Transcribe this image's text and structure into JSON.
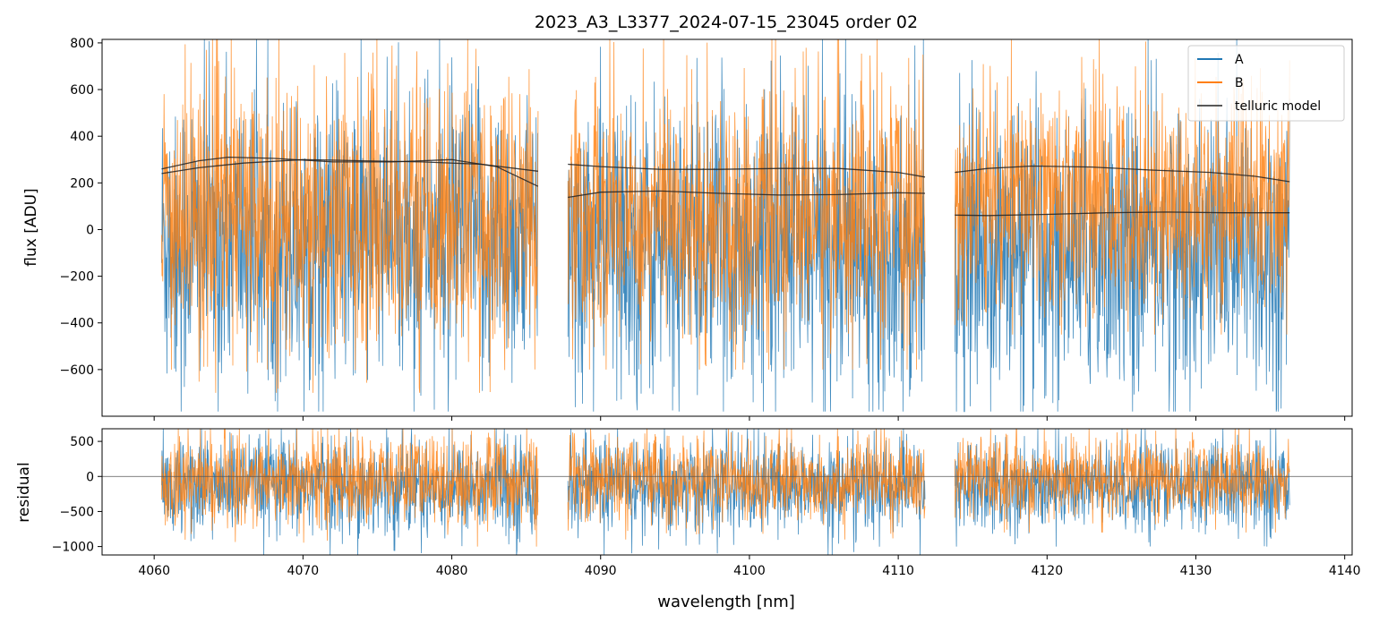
{
  "title": "2023_A3_L3377_2024-07-15_23045  order 02",
  "colors": {
    "A": "#1f77b4",
    "B": "#ff7f0e",
    "telluric": "#222222"
  },
  "chart_data": [
    {
      "type": "line",
      "panel": "top",
      "title": "2023_A3_L3377_2024-07-15_23045  order 02",
      "xlabel": "",
      "ylabel": "flux [ADU]",
      "xlim": [
        4056.5,
        4140.5
      ],
      "ylim": [
        -800,
        815
      ],
      "yticks": [
        -600,
        -400,
        -200,
        0,
        200,
        400,
        600,
        800
      ],
      "xticks": [
        4060,
        4070,
        4080,
        4090,
        4100,
        4110,
        4120,
        4130,
        4140
      ],
      "grid": false,
      "legend": {
        "position": "top-right",
        "entries": [
          "A",
          "B",
          "telluric model"
        ]
      },
      "segments": [
        {
          "x": [
            4060.5,
            4085.8
          ],
          "A_center": -40,
          "A_low": -780,
          "A_high": 815,
          "B_center": 60,
          "B_low": -700,
          "B_high": 815
        },
        {
          "x": [
            4087.8,
            4111.8
          ],
          "A_center": -60,
          "A_low": -780,
          "A_high": 815,
          "B_center": 60,
          "B_low": -600,
          "B_high": 815
        },
        {
          "x": [
            4113.8,
            4136.3
          ],
          "A_center": -100,
          "A_low": -780,
          "A_high": 815,
          "B_center": 120,
          "B_low": -450,
          "B_high": 815
        }
      ],
      "series": [
        {
          "name": "telluric model",
          "segment": 0,
          "x": [
            4060.5,
            4063,
            4065,
            4068,
            4072,
            4076,
            4080,
            4083,
            4085.8
          ],
          "values": [
            260,
            295,
            310,
            305,
            290,
            290,
            300,
            270,
            185
          ]
        },
        {
          "name": "telluric model",
          "segment": 0,
          "x": [
            4060.5,
            4063,
            4066,
            4070,
            4074,
            4078,
            4082,
            4085.8
          ],
          "values": [
            240,
            265,
            285,
            300,
            295,
            290,
            280,
            250
          ]
        },
        {
          "name": "telluric model",
          "segment": 1,
          "x": [
            4087.8,
            4090,
            4094,
            4098,
            4102,
            4106,
            4110,
            4111.8
          ],
          "values": [
            280,
            270,
            258,
            258,
            262,
            262,
            245,
            225
          ]
        },
        {
          "name": "telluric model",
          "segment": 1,
          "x": [
            4087.8,
            4090,
            4094,
            4098,
            4102,
            4106,
            4110,
            4111.8
          ],
          "values": [
            138,
            160,
            165,
            155,
            148,
            150,
            158,
            155
          ]
        },
        {
          "name": "telluric model",
          "segment": 2,
          "x": [
            4113.8,
            4116,
            4119,
            4123,
            4127,
            4131,
            4134,
            4136.3
          ],
          "values": [
            245,
            262,
            272,
            268,
            255,
            245,
            228,
            205
          ]
        },
        {
          "name": "telluric model",
          "segment": 2,
          "x": [
            4113.8,
            4116,
            4120,
            4124,
            4128,
            4132,
            4136.3
          ],
          "values": [
            62,
            60,
            65,
            72,
            75,
            72,
            72
          ]
        }
      ]
    },
    {
      "type": "line",
      "panel": "bottom",
      "xlabel": "wavelength [nm]",
      "ylabel": "residual",
      "xlim": [
        4056.5,
        4140.5
      ],
      "ylim": [
        -1120,
        680
      ],
      "yticks": [
        -1000,
        -500,
        0,
        500
      ],
      "xticks": [
        4060,
        4070,
        4080,
        4090,
        4100,
        4110,
        4120,
        4130,
        4140
      ],
      "grid": false,
      "zero_line": 0,
      "segments": [
        {
          "x": [
            4060.5,
            4085.8
          ],
          "A_center": -150,
          "A_low": -1120,
          "A_high": 680,
          "B_center": -50,
          "B_low": -1000,
          "B_high": 680
        },
        {
          "x": [
            4087.8,
            4111.8
          ],
          "A_center": -150,
          "A_low": -1120,
          "A_high": 680,
          "B_center": -50,
          "B_low": -900,
          "B_high": 680
        },
        {
          "x": [
            4113.8,
            4136.3
          ],
          "A_center": -150,
          "A_low": -1000,
          "A_high": 680,
          "B_center": -30,
          "B_low": -800,
          "B_high": 680
        }
      ]
    }
  ]
}
